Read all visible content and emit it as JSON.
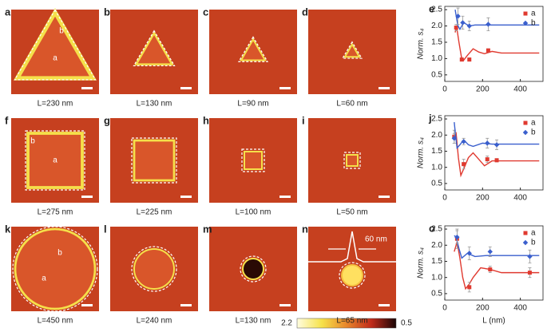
{
  "panels": [
    {
      "letter": "a",
      "caption": "L=230 nm",
      "labels": [
        "a",
        "b"
      ]
    },
    {
      "letter": "b",
      "caption": "L=130 nm"
    },
    {
      "letter": "c",
      "caption": "L=90 nm"
    },
    {
      "letter": "d",
      "caption": "L=60 nm"
    },
    {
      "letter": "f",
      "caption": "L=275 nm",
      "labels": [
        "a",
        "b"
      ]
    },
    {
      "letter": "g",
      "caption": "L=225 nm"
    },
    {
      "letter": "h",
      "caption": "L=100 nm"
    },
    {
      "letter": "i",
      "caption": "L=50 nm"
    },
    {
      "letter": "k",
      "caption": "L=450 nm",
      "labels": [
        "a",
        "b"
      ]
    },
    {
      "letter": "l",
      "caption": "L=240 nm"
    },
    {
      "letter": "m",
      "caption": "L=130 nm"
    },
    {
      "letter": "n",
      "caption": "L=65 nm"
    }
  ],
  "annotation": "60 nm",
  "colorbar": {
    "max_label": "2.2",
    "min_label": "0.5"
  },
  "chart_data": [
    {
      "type": "scatter",
      "panel": "e",
      "ylabel": "Norm. s₄",
      "xlim": [
        0,
        520
      ],
      "xticks": [
        0,
        200,
        400
      ],
      "ylim": [
        0.3,
        2.6
      ],
      "yticks": [
        0.5,
        {
          "value": 1,
          "label": "1.0"
        },
        1.5,
        {
          "value": 2,
          "label": "2.0"
        },
        2.5
      ],
      "series": [
        {
          "name": "a",
          "color": "#e03a30",
          "marker": "square",
          "x": [
            60,
            90,
            130,
            230
          ],
          "values": [
            1.95,
            0.97,
            0.97,
            1.25
          ],
          "errors": [
            0.1,
            0.05,
            0.05,
            0.05
          ],
          "fit": {
            "x": [
              55,
              62,
              75,
              88,
              100,
              120,
              150,
              180,
              210,
              250,
              300,
              400,
              500
            ],
            "values": [
              1.8,
              2.0,
              1.5,
              1.05,
              0.95,
              1.1,
              1.3,
              1.2,
              1.15,
              1.22,
              1.17,
              1.17,
              1.17
            ]
          }
        },
        {
          "name": "b",
          "color": "#3a5fcd",
          "marker": "diamond",
          "x": [
            70,
            95,
            130,
            230
          ],
          "values": [
            2.3,
            2.1,
            2.0,
            2.05
          ],
          "errors": [
            0.25,
            0.2,
            0.15,
            0.2
          ],
          "fit": {
            "x": [
              55,
              62,
              70,
              80,
              100,
              130,
              160,
              200,
              300,
              500
            ],
            "values": [
              2.5,
              2.25,
              2.0,
              1.9,
              2.1,
              2.0,
              2.03,
              2.03,
              2.03,
              2.03
            ]
          }
        }
      ]
    },
    {
      "type": "scatter",
      "panel": "j",
      "ylabel": "Norm. s₄",
      "xlim": [
        0,
        520
      ],
      "xticks": [
        0,
        200,
        400
      ],
      "ylim": [
        0.3,
        2.6
      ],
      "yticks": [
        0.5,
        {
          "value": 1,
          "label": "1.0"
        },
        1.5,
        {
          "value": 2,
          "label": "2.0"
        },
        2.5
      ],
      "series": [
        {
          "name": "a",
          "color": "#e03a30",
          "marker": "square",
          "x": [
            50,
            100,
            225,
            275
          ],
          "values": [
            1.95,
            1.1,
            1.25,
            1.22
          ],
          "errors": [
            0.2,
            0.15,
            0.1,
            0.05
          ],
          "fit": {
            "x": [
              50,
              60,
              72,
              85,
              100,
              125,
              150,
              180,
              210,
              250,
              300,
              500
            ],
            "values": [
              1.95,
              2.05,
              1.3,
              0.75,
              0.95,
              1.3,
              1.45,
              1.25,
              1.05,
              1.2,
              1.2,
              1.2
            ]
          }
        },
        {
          "name": "b",
          "color": "#3a5fcd",
          "marker": "diamond",
          "x": [
            50,
            100,
            225,
            275
          ],
          "values": [
            1.9,
            1.8,
            1.75,
            1.7
          ],
          "errors": [
            0.15,
            0.1,
            0.15,
            0.15
          ],
          "fit": {
            "x": [
              50,
              57,
              65,
              80,
              100,
              125,
              150,
              200,
              250,
              500
            ],
            "values": [
              2.4,
              2.0,
              1.6,
              1.7,
              1.85,
              1.7,
              1.65,
              1.75,
              1.72,
              1.72
            ]
          }
        }
      ]
    },
    {
      "type": "scatter",
      "panel": "o",
      "ylabel": "Norm. s₄",
      "xlabel": "L (nm)",
      "xlim": [
        0,
        520
      ],
      "xticks": [
        0,
        200,
        400
      ],
      "ylim": [
        0.3,
        2.6
      ],
      "yticks": [
        0.5,
        {
          "value": 1,
          "label": "1.0"
        },
        1.5,
        {
          "value": 2,
          "label": "2.0"
        },
        2.5
      ],
      "series": [
        {
          "name": "a",
          "color": "#e03a30",
          "marker": "square",
          "x": [
            65,
            130,
            240,
            450
          ],
          "values": [
            2.2,
            0.7,
            1.25,
            1.15
          ],
          "errors": [
            0.3,
            0.15,
            0.1,
            0.15
          ],
          "fit": {
            "x": [
              50,
              65,
              80,
              95,
              110,
              130,
              150,
              190,
              240,
              300,
              400,
              500
            ],
            "values": [
              1.8,
              2.1,
              1.6,
              1.0,
              0.65,
              0.8,
              1.0,
              1.3,
              1.25,
              1.15,
              1.15,
              1.15
            ]
          }
        },
        {
          "name": "b",
          "color": "#3a5fcd",
          "marker": "diamond",
          "x": [
            65,
            130,
            240,
            450
          ],
          "values": [
            2.25,
            1.75,
            1.8,
            1.65
          ],
          "errors": [
            0.2,
            0.2,
            0.15,
            0.2
          ],
          "fit": {
            "x": [
              50,
              60,
              75,
              90,
              120,
              160,
              220,
              300,
              500
            ],
            "values": [
              2.3,
              2.25,
              1.9,
              1.6,
              1.75,
              1.65,
              1.68,
              1.68,
              1.68
            ]
          }
        }
      ]
    }
  ]
}
